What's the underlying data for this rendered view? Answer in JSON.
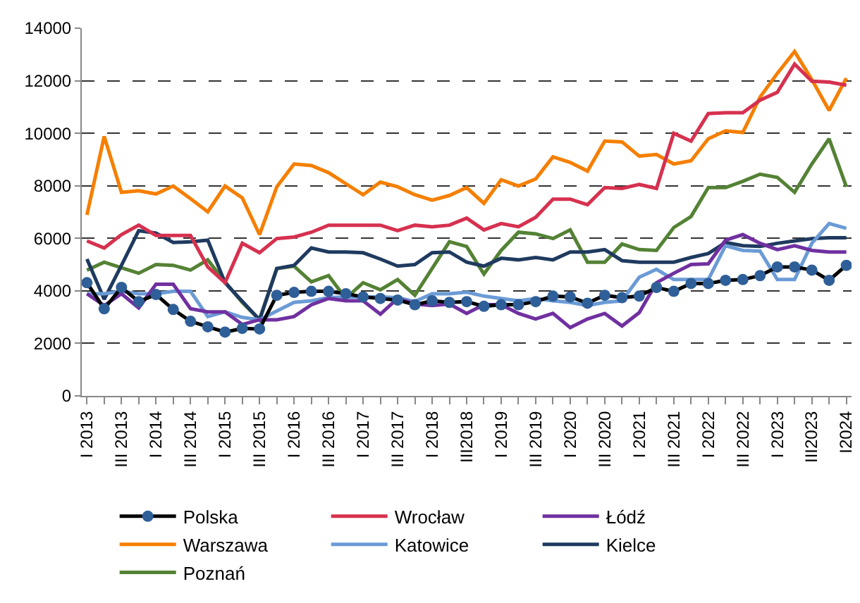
{
  "chart_data": {
    "type": "line",
    "categories": [
      "I 2013",
      null,
      "III 2013",
      null,
      "I 2014",
      null,
      "III 2014",
      null,
      "I 2015",
      null,
      "III 2015",
      null,
      "I 2016",
      null,
      "III 2016",
      null,
      "I 2017",
      null,
      "III 2017",
      null,
      "I 2018",
      null,
      "III2018",
      null,
      "I 2019",
      null,
      "III 2019",
      null,
      "I 2020",
      null,
      "III 2020",
      null,
      "I 2021",
      null,
      "III 2021",
      null,
      "I 2022",
      null,
      "III 2022",
      null,
      "I 2023",
      null,
      "III2023",
      null,
      "I2024"
    ],
    "ylim": [
      0,
      14000
    ],
    "yticks": [
      0,
      2000,
      4000,
      6000,
      8000,
      10000,
      12000,
      14000
    ],
    "grid": "y",
    "legend": "bottom",
    "line_style": "solid",
    "series": [
      {
        "name": "Polska",
        "color": "#2f5f98",
        "marker": "circle",
        "values": [
          4310,
          3320,
          4130,
          3590,
          3860,
          3290,
          2840,
          2630,
          2430,
          2570,
          2550,
          3830,
          3940,
          3980,
          3980,
          3890,
          3770,
          3710,
          3650,
          3470,
          3620,
          3560,
          3590,
          3410,
          3470,
          3470,
          3590,
          3800,
          3770,
          3530,
          3830,
          3740,
          3800,
          4130,
          3980,
          4280,
          4280,
          4400,
          4430,
          4580,
          4910,
          4910,
          4790,
          4400,
          4970
        ]
      },
      {
        "name": "Wrocław",
        "color": "#d6314f",
        "marker": "none",
        "values": [
          5900,
          5630,
          6140,
          6500,
          6110,
          6110,
          6110,
          4910,
          4310,
          5810,
          5450,
          5990,
          6050,
          6230,
          6500,
          6500,
          6500,
          6500,
          6290,
          6500,
          6440,
          6500,
          6770,
          6320,
          6560,
          6440,
          6800,
          7490,
          7490,
          7280,
          7930,
          7900,
          8050,
          7900,
          10000,
          9700,
          10750,
          10780,
          10780,
          11260,
          11560,
          12630,
          11980,
          11950,
          11830
        ]
      },
      {
        "name": "Łódź",
        "color": "#7030a0",
        "marker": "none",
        "values": [
          3890,
          3440,
          3890,
          3350,
          4250,
          4250,
          3320,
          3200,
          3200,
          2720,
          2900,
          2900,
          3020,
          3470,
          3710,
          3620,
          3620,
          3110,
          3710,
          3500,
          3440,
          3500,
          3140,
          3470,
          3470,
          3140,
          2930,
          3140,
          2600,
          2930,
          3140,
          2660,
          3170,
          4310,
          4670,
          5000,
          5030,
          5930,
          6140,
          5810,
          5570,
          5720,
          5540,
          5480,
          5480
        ]
      },
      {
        "name": "Warszawa",
        "color": "#f57f00",
        "marker": "none",
        "values": [
          6890,
          9880,
          7750,
          7810,
          7690,
          7990,
          7510,
          7010,
          7990,
          7540,
          6140,
          7960,
          8830,
          8770,
          8500,
          8080,
          7660,
          8140,
          7960,
          7660,
          7450,
          7630,
          7930,
          7330,
          8230,
          7990,
          8260,
          9100,
          8890,
          8560,
          9700,
          9670,
          9130,
          9190,
          8830,
          8950,
          9790,
          10090,
          10030,
          11380,
          12280,
          13110,
          12040,
          10870,
          12100
        ]
      },
      {
        "name": "Katowice",
        "color": "#6b9bd6",
        "marker": "none",
        "values": [
          3890,
          3890,
          3980,
          3890,
          3890,
          3980,
          3980,
          3020,
          3200,
          2990,
          2900,
          3230,
          3560,
          3620,
          3740,
          3770,
          3770,
          3770,
          3740,
          3590,
          3890,
          3890,
          3950,
          3800,
          3710,
          3620,
          3710,
          3620,
          3560,
          3440,
          3560,
          3620,
          4520,
          4820,
          4430,
          4430,
          4430,
          5720,
          5540,
          5510,
          4430,
          4430,
          5810,
          6560,
          6380
        ]
      },
      {
        "name": "Kielce",
        "color": "#1f3a5f",
        "marker": "none",
        "values": [
          5210,
          3680,
          4970,
          6290,
          6200,
          5840,
          5870,
          5930,
          4310,
          3600,
          2900,
          4850,
          4970,
          5630,
          5480,
          5480,
          5450,
          5210,
          4940,
          5000,
          5450,
          5480,
          5090,
          4940,
          5240,
          5180,
          5270,
          5180,
          5480,
          5480,
          5570,
          5150,
          5090,
          5090,
          5090,
          5270,
          5420,
          5840,
          5720,
          5690,
          5810,
          5900,
          5990,
          6020,
          6020
        ]
      },
      {
        "name": "Poznań",
        "color": "#548235",
        "marker": "none",
        "values": [
          4790,
          5090,
          4880,
          4670,
          5000,
          4970,
          4790,
          5180,
          4340,
          3560,
          2900,
          4850,
          4940,
          4340,
          4580,
          3710,
          4310,
          4040,
          4430,
          3830,
          4850,
          5870,
          5690,
          4640,
          5540,
          6230,
          6170,
          5990,
          6320,
          5090,
          5090,
          5780,
          5570,
          5540,
          6410,
          6830,
          7930,
          7930,
          8170,
          8440,
          8320,
          7750,
          8830,
          9790,
          7960
        ]
      }
    ]
  }
}
